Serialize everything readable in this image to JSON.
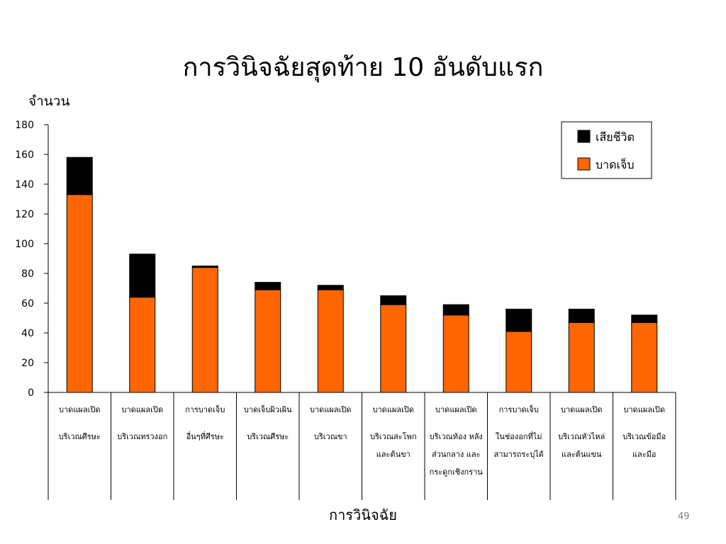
{
  "slide": {
    "title": "การวินิจฉัยสุดท้าย 10 อันดับแรก",
    "page_number": "49"
  },
  "chart_data": {
    "type": "bar",
    "stacked": true,
    "ylabel": "จำนวน",
    "xlabel": "การวินิจฉัย",
    "ylim": [
      0,
      180
    ],
    "yticks": [
      0,
      20,
      40,
      60,
      80,
      100,
      120,
      140,
      160,
      180
    ],
    "grid": false,
    "legend_position": "top-right",
    "categories": [
      [
        "บาดแผลเปิด",
        "บริเวณศีรษะ"
      ],
      [
        "บาดแผลเปิด",
        "บริเวณทรวงอก"
      ],
      [
        "การบาดเจ็บ",
        "อื่นๆที่ศีรษะ"
      ],
      [
        "บาดเจ็บผิวเผิน",
        "บริเวณศีรษะ"
      ],
      [
        "บาดแผลเปิด",
        "บริเวณขา"
      ],
      [
        "บาดแผลเปิด",
        "บริเวณสะโพก",
        "และต้นขา"
      ],
      [
        "บาดแผลเปิด",
        "บริเวณท้อง หลัง",
        "ส่วนกลาง  และ",
        "กระดูกเชิงกราน"
      ],
      [
        "การบาดเจ็บ",
        "ในช่องอกที่ไม่",
        "สามารถระบุได้"
      ],
      [
        "บาดแผลเปิด",
        "บริเวณหัวไหล่",
        "และต้นแขน"
      ],
      [
        "บาดแผลเปิด",
        "บริเวณข้อมือ",
        "และมือ"
      ]
    ],
    "series": [
      {
        "name": "บาดเจ็บ",
        "color": "#ff6600",
        "values": [
          133,
          64,
          84,
          69,
          69,
          59,
          52,
          41,
          47,
          47
        ]
      },
      {
        "name": "เสียชีวิต",
        "color": "#000000",
        "values": [
          25,
          29,
          1,
          5,
          3,
          6,
          7,
          15,
          9,
          5
        ]
      }
    ],
    "legend_order": [
      "เสียชีวิต",
      "บาดเจ็บ"
    ]
  }
}
